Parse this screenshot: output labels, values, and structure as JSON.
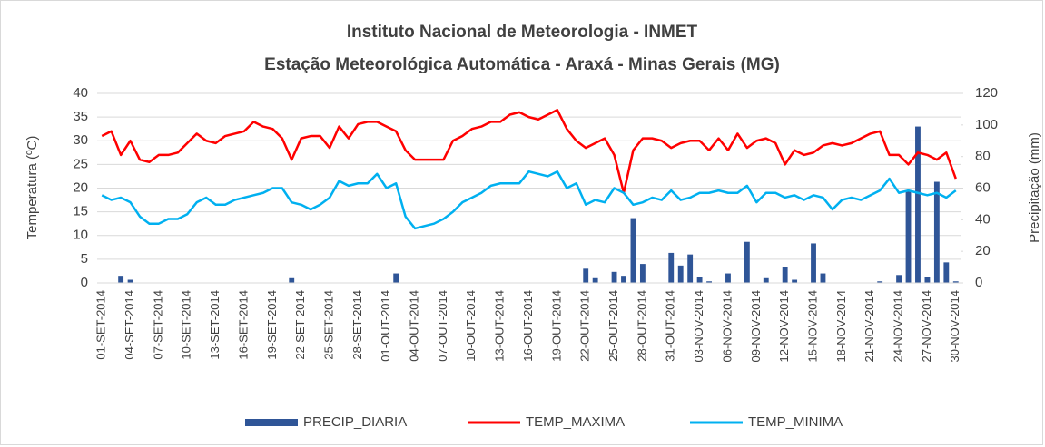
{
  "chart_data": {
    "type": "combo",
    "title": "Instituto Nacional de Meteorologia - INMET",
    "subtitle": "Estação Meteorológica Automática - Araxá - Minas Gerais (MG)",
    "y_label": "Temperatura (ºC)",
    "y2_label": "Precipitação (mm)",
    "categories": [
      "01-SET-2014",
      null,
      null,
      "04-SET-2014",
      null,
      null,
      "07-SET-2014",
      null,
      null,
      "10-SET-2014",
      null,
      null,
      "13-SET-2014",
      null,
      null,
      "16-SET-2014",
      null,
      null,
      "19-SET-2014",
      null,
      null,
      "22-SET-2014",
      null,
      null,
      "25-SET-2014",
      null,
      null,
      "28-SET-2014",
      null,
      null,
      "01-OUT-2014",
      null,
      null,
      "04-OUT-2014",
      null,
      null,
      "07-OUT-2014",
      null,
      null,
      "10-OUT-2014",
      null,
      null,
      "13-OUT-2014",
      null,
      null,
      "16-OUT-2014",
      null,
      null,
      "19-OUT-2014",
      null,
      null,
      "22-OUT-2014",
      null,
      null,
      "25-OUT-2014",
      null,
      null,
      "28-OUT-2014",
      null,
      null,
      "31-OUT-2014",
      null,
      null,
      "03-NOV-2014",
      null,
      null,
      "06-NOV-2014",
      null,
      null,
      "09-NOV-2014",
      null,
      null,
      "12-NOV-2014",
      null,
      null,
      "15-NOV-2014",
      null,
      null,
      "18-NOV-2014",
      null,
      null,
      "21-NOV-2014",
      null,
      null,
      "24-NOV-2014",
      null,
      null,
      "27-NOV-2014",
      null,
      null,
      "30-NOV-2014"
    ],
    "series": [
      {
        "name": "PRECIP_DIARIA",
        "type": "bar",
        "axis": "y2",
        "color": "#2f5597",
        "values": [
          0,
          0,
          4.5,
          2,
          0,
          0,
          0,
          0,
          0,
          0,
          0,
          0,
          0,
          0,
          0,
          0,
          0,
          0,
          0,
          0,
          3,
          0,
          0,
          0,
          0,
          0,
          0,
          0,
          0,
          0,
          0,
          6,
          0,
          0,
          0,
          0,
          0,
          0,
          0,
          0,
          0,
          0,
          0,
          0,
          0,
          0,
          0,
          0,
          0,
          0,
          0,
          9,
          3,
          0,
          7,
          4.5,
          41,
          12,
          0,
          0,
          19,
          11,
          18,
          4,
          1,
          0,
          6,
          0,
          26,
          0,
          3,
          0,
          10,
          2,
          0,
          25,
          6,
          0,
          0,
          0,
          0,
          0,
          1,
          0,
          5,
          58,
          99,
          4,
          64,
          13,
          1
        ]
      },
      {
        "name": "TEMP_MAXIMA",
        "type": "line",
        "axis": "y",
        "color": "#ff0000",
        "values": [
          31,
          32,
          27,
          30,
          26,
          25.5,
          27,
          27,
          27.5,
          29.5,
          31.5,
          30,
          29.5,
          31,
          31.5,
          32,
          34,
          33,
          32.5,
          30.5,
          26,
          30.5,
          31,
          31,
          28.5,
          33,
          30.5,
          33.5,
          34,
          34,
          33,
          32,
          28,
          26,
          26,
          26,
          26,
          30,
          31,
          32.5,
          33,
          34,
          34,
          35.5,
          36,
          35,
          34.5,
          35.5,
          36.5,
          32.5,
          30,
          28.5,
          29.5,
          30.5,
          27,
          19,
          28,
          30.5,
          30.5,
          30,
          28.5,
          29.5,
          30,
          30,
          28,
          30.5,
          28,
          31.5,
          28.5,
          30,
          30.5,
          29.5,
          25,
          28,
          27,
          27.5,
          29,
          29.5,
          29,
          29.5,
          30.5,
          31.5,
          32,
          27,
          27,
          25,
          27.5,
          27,
          26,
          27.5,
          22
        ]
      },
      {
        "name": "TEMP_MINIMA",
        "type": "line",
        "axis": "y",
        "color": "#00b0f0",
        "values": [
          18.5,
          17.5,
          18,
          17,
          14,
          12.5,
          12.5,
          13.5,
          13.5,
          14.5,
          17,
          18,
          16.5,
          16.5,
          17.5,
          18,
          18.5,
          19,
          20,
          20,
          17,
          16.5,
          15.5,
          16.5,
          18,
          21.5,
          20.5,
          21,
          21,
          23,
          20,
          21,
          14,
          11.5,
          12,
          12.5,
          13.5,
          15,
          17,
          18,
          19,
          20.5,
          21,
          21,
          21,
          23.5,
          23,
          22.5,
          23.5,
          20,
          21,
          16.5,
          17.5,
          17,
          20,
          19,
          16.5,
          17,
          18,
          17.5,
          19.5,
          17.5,
          18,
          19,
          19,
          19.5,
          19,
          19,
          20.5,
          17,
          19,
          19,
          18,
          18.5,
          17.5,
          18.5,
          18,
          15.5,
          17.5,
          18,
          17.5,
          18.5,
          19.5,
          22,
          19,
          19.5,
          19,
          18.5,
          19,
          18,
          19.5
        ]
      }
    ],
    "ylim": [
      0,
      40
    ],
    "yticks": [
      0,
      5,
      10,
      15,
      20,
      25,
      30,
      35,
      40
    ],
    "y2lim": [
      0,
      120
    ],
    "y2ticks": [
      0,
      20,
      40,
      60,
      80,
      100,
      120
    ],
    "grid": true,
    "legend": "bottom"
  }
}
